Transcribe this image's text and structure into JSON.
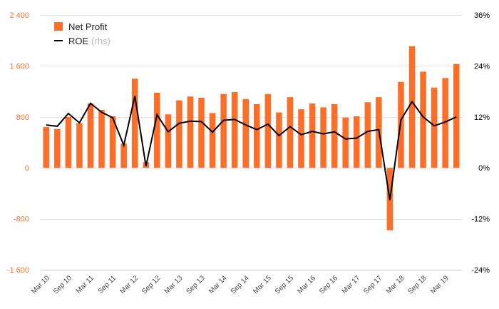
{
  "colors": {
    "bar": "#ff6e29",
    "line": "#000000",
    "left_axis": "#ff6e29",
    "right_axis": "#000000",
    "grid": "#e6e6e6"
  },
  "legend": {
    "bar_label": "Net Profit",
    "line_label": "ROE",
    "line_suffix": "(rhs)"
  },
  "chart_data": {
    "type": "bar",
    "legend_position": "top-left",
    "grid": true,
    "categories": [
      "Mar 10",
      "Jun 10",
      "Sep 10",
      "Dec 10",
      "Mar 11",
      "Jun 11",
      "Sep 11",
      "Dec 11",
      "Mar 12",
      "Jun 12",
      "Sep 12",
      "Dec 12",
      "Mar 13",
      "Jun 13",
      "Sep 13",
      "Dec 13",
      "Mar 14",
      "Jun 14",
      "Sep 14",
      "Dec 14",
      "Mar 15",
      "Jun 15",
      "Sep 15",
      "Dec 15",
      "Mar 16",
      "Jun 16",
      "Sep 16",
      "Dec 16",
      "Mar 17",
      "Jun 17",
      "Sep 17",
      "Dec 17",
      "Mar 18",
      "Jun 18",
      "Sep 18",
      "Dec 18",
      "Mar 19",
      "Jun 19"
    ],
    "tick_labels": [
      "Mar 10",
      "Sep 10",
      "Mar 11",
      "Sep 11",
      "Mar 12",
      "Sep 12",
      "Mar 13",
      "Sep 13",
      "Mar 14",
      "Sep 14",
      "Mar 15",
      "Sep 15",
      "Mar 16",
      "Sep 16",
      "Mar 17",
      "Sep 17",
      "Mar 18",
      "Sep 18",
      "Mar 19"
    ],
    "y_left": {
      "ylim": [
        -1600,
        2400
      ],
      "ticks": [
        -1600,
        -800,
        0,
        800,
        1600,
        2400
      ],
      "tick_labels": [
        "-1 600",
        "-800",
        "0",
        "800",
        "1 600",
        "2 400"
      ]
    },
    "y_right": {
      "ylim": [
        -24,
        36
      ],
      "ticks": [
        -24,
        -12,
        0,
        12,
        24,
        36
      ],
      "tick_labels": [
        "-24%",
        "-12%",
        "0%",
        "12%",
        "24%",
        "36%"
      ]
    },
    "series": [
      {
        "name": "Net Profit",
        "axis": "left",
        "type": "bar",
        "values": [
          640,
          610,
          800,
          700,
          1010,
          910,
          810,
          380,
          1400,
          90,
          1180,
          840,
          1060,
          1120,
          1100,
          860,
          1160,
          1190,
          1080,
          1000,
          1160,
          870,
          1110,
          920,
          1010,
          950,
          1000,
          790,
          810,
          1030,
          1110,
          -980,
          1350,
          1910,
          1510,
          1260,
          1410,
          1630
        ]
      },
      {
        "name": "ROE",
        "axis": "right",
        "type": "line",
        "values": [
          10.1,
          9.8,
          12.8,
          10.6,
          15.2,
          13.1,
          11.8,
          5.3,
          16.9,
          0.4,
          12.5,
          8.5,
          10.5,
          11.0,
          10.9,
          8.4,
          11.2,
          11.4,
          10.1,
          9.0,
          10.3,
          7.6,
          9.7,
          7.8,
          8.6,
          8.0,
          8.5,
          6.8,
          7.0,
          8.6,
          9.0,
          -7.6,
          11.3,
          15.6,
          12.0,
          9.9,
          10.8,
          12.0
        ]
      }
    ]
  }
}
